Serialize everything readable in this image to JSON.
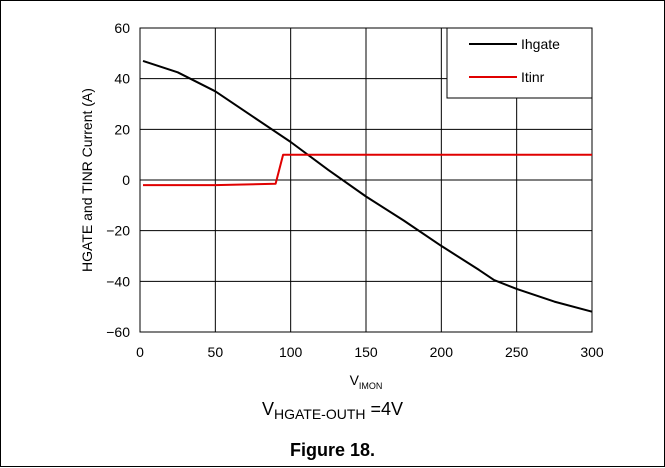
{
  "chart_data": {
    "type": "line",
    "xlabel_main": "V",
    "xlabel_sub": "IMON",
    "ylabel": "HGATE and TINR Current (A)",
    "xlim": [
      0,
      300
    ],
    "ylim": [
      -60,
      60
    ],
    "xticks": [
      0,
      50,
      100,
      150,
      200,
      250,
      300
    ],
    "yticks": [
      60,
      40,
      20,
      0,
      -20,
      -40,
      -60
    ],
    "ytick_labels": [
      "60",
      "40",
      "20",
      "0",
      "−20",
      "−40",
      "−60"
    ],
    "grid": true,
    "legend_position": "top-right",
    "series": [
      {
        "name": "Ihgate",
        "color": "#000000",
        "x": [
          2,
          25,
          50,
          75,
          100,
          125,
          150,
          175,
          200,
          225,
          235,
          250,
          275,
          300
        ],
        "y": [
          47,
          42.5,
          35,
          25,
          15,
          4,
          -6.5,
          -16,
          -26,
          -35.5,
          -39.5,
          -43,
          -48,
          -52
        ]
      },
      {
        "name": "Itinr",
        "color": "#e00000",
        "x": [
          2,
          50,
          90,
          95,
          100,
          150,
          200,
          250,
          300
        ],
        "y": [
          -2,
          -2,
          -1.5,
          10,
          10,
          10,
          10,
          10,
          10
        ]
      }
    ]
  },
  "caption": {
    "condition_main": "V",
    "condition_sub": "HGATE-OUTH",
    "condition_value": " =4V",
    "figure_label": "Figure 18."
  }
}
